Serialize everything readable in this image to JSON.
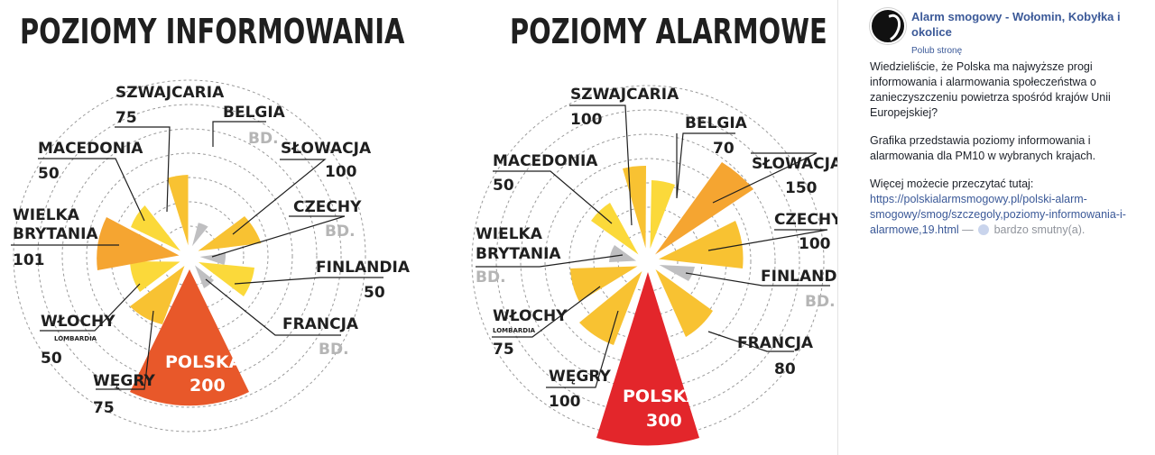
{
  "charts": [
    {
      "title": "POZIOMY INFORMOWANIA",
      "polska": {
        "label": "POLSKA",
        "value": "200"
      },
      "countries": [
        {
          "label": "SZWAJCARIA",
          "value": "75"
        },
        {
          "label": "BELGIA",
          "value": "BD."
        },
        {
          "label": "SŁOWACJA",
          "value": "100"
        },
        {
          "label": "CZECHY",
          "value": "BD."
        },
        {
          "label": "FINLANDIA",
          "value": "50"
        },
        {
          "label": "FRANCJA",
          "value": "BD."
        },
        {
          "label": "WĘGRY",
          "value": "75"
        },
        {
          "label": "WŁOCHY",
          "sublabel": "LOMBARDIA",
          "value": "50"
        },
        {
          "label": "WIELKA",
          "label2": "BRYTANIA",
          "value": "101"
        },
        {
          "label": "MACEDONIA",
          "value": "50"
        }
      ]
    },
    {
      "title": "POZIOMY ALARMOWE",
      "polska": {
        "label": "POLSKA",
        "value": "300"
      },
      "countries": [
        {
          "label": "SZWAJCARIA",
          "value": "100"
        },
        {
          "label": "BELGIA",
          "value": "70"
        },
        {
          "label": "SŁOWACJA",
          "value": "150"
        },
        {
          "label": "CZECHY",
          "value": "100"
        },
        {
          "label": "FINLANDIA",
          "value": "BD."
        },
        {
          "label": "FRANCJA",
          "value": "80"
        },
        {
          "label": "WĘGRY",
          "value": "100"
        },
        {
          "label": "WŁOCHY",
          "sublabel": "LOMBARDIA",
          "value": "75"
        },
        {
          "label": "WIELKA",
          "label2": "BRYTANIA",
          "value": "BD."
        },
        {
          "label": "MACEDONIA",
          "value": "50"
        }
      ]
    }
  ],
  "colors": {
    "informowanie_polska": "#e8582a",
    "alarmowe_polska": "#e3262b",
    "orange": "#f5a531",
    "amber": "#f8c232",
    "yellow": "#fbd93a",
    "grey": "#bfbfc1",
    "facebook_blue": "#3b5998"
  },
  "post": {
    "page_name": "Alarm smogowy - Wołomin, Kobyłka i okolice",
    "like_link": "Polub stronę",
    "paragraphs": [
      "Wiedzieliście, że Polska ma najwyższe progi informowania i alarmowania społeczeństwa o zanieczyszczeniu powietrza spośród krajów Unii Europejskiej?",
      "Grafika przedstawia poziomy informowania i alarmowania dla PM10 w wybranych krajach."
    ],
    "more_text": "Więcej możecie przeczytać tutaj:",
    "link": "https://polskialarmsmogowy.pl/polski-alarm-smogowy/smog/szczegoly,poziomy-informowania-i-alarmowe,19.html",
    "dash": "—",
    "feeling": "bardzo smutny(a).",
    "feeling_icon": "sad-face-icon"
  }
}
